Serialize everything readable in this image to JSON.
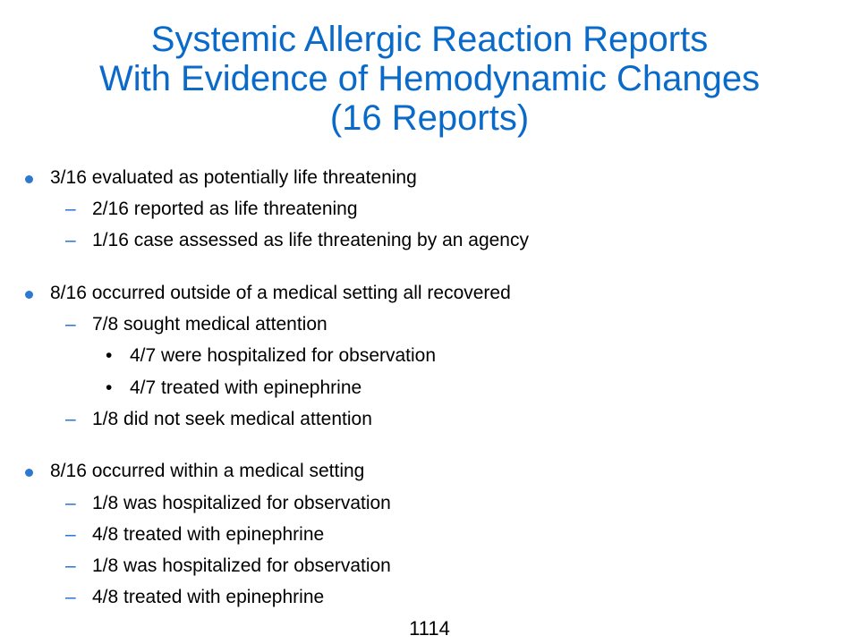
{
  "slide": {
    "title_lines": [
      "Systemic Allergic Reaction Reports",
      "With Evidence of Hemodynamic Changes",
      "(16 Reports)"
    ],
    "items": [
      {
        "level": 1,
        "marker": "",
        "text": "3/16 evaluated as potentially life threatening"
      },
      {
        "level": 2,
        "marker": "–",
        "text": "2/16 reported as life threatening"
      },
      {
        "level": 2,
        "marker": "–",
        "text": "1/16 case assessed as life threatening by an agency"
      },
      {
        "level": 1,
        "marker": "",
        "text": "8/16 occurred outside of a medical setting all recovered"
      },
      {
        "level": 2,
        "marker": "–",
        "text": "7/8 sought medical attention"
      },
      {
        "level": 3,
        "marker": "•",
        "text": "4/7 were hospitalized for observation"
      },
      {
        "level": 3,
        "marker": "•",
        "text": "4/7 treated with epinephrine"
      },
      {
        "level": 2,
        "marker": "–",
        "text": "1/8 did not seek medical attention"
      },
      {
        "level": 1,
        "marker": "",
        "text": "8/16 occurred within a medical setting"
      },
      {
        "level": 2,
        "marker": "–",
        "text": "1/8 was hospitalized for observation"
      },
      {
        "level": 2,
        "marker": "–",
        "text": "4/8 treated with epinephrine"
      },
      {
        "level": 2,
        "marker": "–",
        "text": "1/8 was hospitalized for observation"
      },
      {
        "level": 2,
        "marker": "–",
        "text": "4/8 treated with epinephrine"
      }
    ],
    "page_number": "1114"
  },
  "colors": {
    "title": "#0a6ac9",
    "bullet": "#2e78d2",
    "dash": "#1f6fd0",
    "text": "#000000"
  }
}
